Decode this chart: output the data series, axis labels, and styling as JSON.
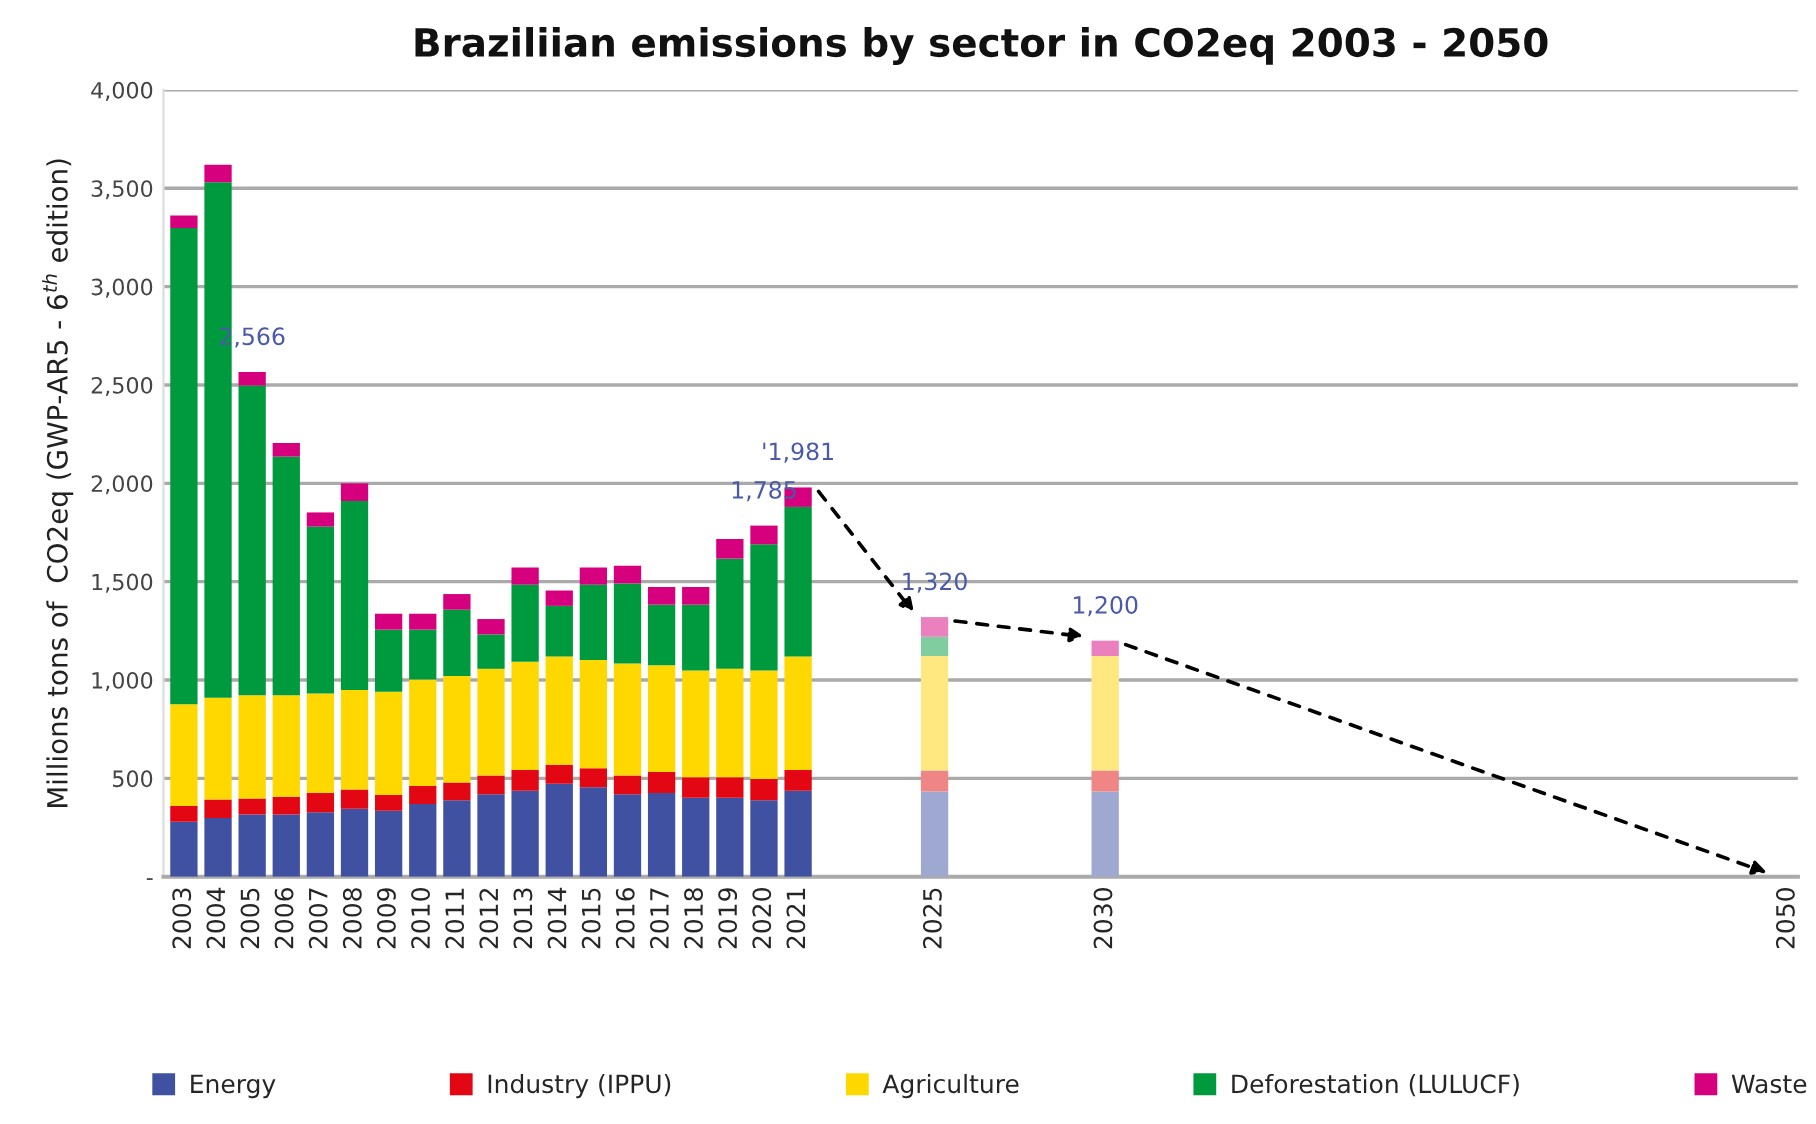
{
  "chart_data": {
    "type": "bar",
    "stacked": true,
    "title": "Braziliian emissions by sector in CO2eq 2003 - 2050",
    "ylabel": "Millions tons of  CO2eq (GWP-AR5 - 6$^{th}$ edition)",
    "x": [
      2003,
      2004,
      2005,
      2006,
      2007,
      2008,
      2009,
      2010,
      2011,
      2012,
      2013,
      2014,
      2015,
      2016,
      2017,
      2018,
      2019,
      2020,
      2021,
      2025,
      2030,
      2050
    ],
    "xlim": [
      2002.4,
      2050.3
    ],
    "xticks": [
      2003,
      2004,
      2005,
      2006,
      2007,
      2008,
      2009,
      2010,
      2011,
      2012,
      2013,
      2014,
      2015,
      2016,
      2017,
      2018,
      2019,
      2020,
      2021,
      2025,
      2030,
      2050
    ],
    "ylim": [
      0,
      4000
    ],
    "yticks": [
      {
        "value": 0,
        "label": "-"
      },
      500,
      {
        "value": 1000,
        "label": "1,000"
      },
      {
        "value": 1500,
        "label": "1,500"
      },
      {
        "value": 2000,
        "label": "2,000"
      },
      {
        "value": 2500,
        "label": "2,500"
      },
      {
        "value": 3000,
        "label": "3,000"
      },
      {
        "value": 3500,
        "label": "3,500"
      },
      {
        "value": 4000,
        "label": "4,000"
      }
    ],
    "grid": "y",
    "legend": "bottom",
    "series": [
      {
        "name": "Energy",
        "color": "#3f51a0",
        "colors": [
          "#3f51a0",
          "#3f51a0",
          "#3f51a0",
          "#3f51a0",
          "#3f51a0",
          "#3f51a0",
          "#3f51a0",
          "#3f51a0",
          "#3f51a0",
          "#3f51a0",
          "#3f51a0",
          "#3f51a0",
          "#3f51a0",
          "#3f51a0",
          "#3f51a0",
          "#3f51a0",
          "#3f51a0",
          "#3f51a0",
          "#3f51a0",
          "#9fa8d0",
          "#9fa8d0",
          "#9fa8d0"
        ],
        "values": [
          280,
          298,
          316,
          316,
          328,
          346,
          336,
          370,
          389,
          419,
          437,
          473,
          455,
          419,
          425,
          401,
          401,
          389,
          437,
          433,
          433,
          0
        ]
      },
      {
        "name": "Industry (IPPU)",
        "color": "#e30613",
        "colors": [
          "#e30613",
          "#e30613",
          "#e30613",
          "#e30613",
          "#e30613",
          "#e30613",
          "#e30613",
          "#e30613",
          "#e30613",
          "#e30613",
          "#e30613",
          "#e30613",
          "#e30613",
          "#e30613",
          "#e30613",
          "#e30613",
          "#e30613",
          "#e30613",
          "#e30613",
          "#f08585",
          "#f08585",
          "#f08585"
        ],
        "values": [
          80,
          94,
          82,
          91,
          97,
          97,
          80,
          91,
          90,
          96,
          105,
          96,
          96,
          96,
          108,
          105,
          105,
          108,
          105,
          107,
          107,
          0
        ]
      },
      {
        "name": "Agriculture",
        "color": "#ffd800",
        "colors": [
          "#ffd800",
          "#ffd800",
          "#ffd800",
          "#ffd800",
          "#ffd800",
          "#ffd800",
          "#ffd800",
          "#ffd800",
          "#ffd800",
          "#ffd800",
          "#ffd800",
          "#ffd800",
          "#ffd800",
          "#ffd800",
          "#ffd800",
          "#ffd800",
          "#ffd800",
          "#ffd800",
          "#ffd800",
          "#ffe880",
          "#ffe880",
          "#ffe880"
        ],
        "values": [
          517,
          518,
          524,
          515,
          506,
          506,
          524,
          542,
          542,
          542,
          551,
          551,
          551,
          569,
          542,
          542,
          551,
          551,
          578,
          582,
          582,
          0
        ]
      },
      {
        "name": "Deforestation (LULUCF)",
        "color": "#009a3e",
        "colors": [
          "#009a3e",
          "#009a3e",
          "#009a3e",
          "#009a3e",
          "#009a3e",
          "#009a3e",
          "#009a3e",
          "#009a3e",
          "#009a3e",
          "#009a3e",
          "#009a3e",
          "#009a3e",
          "#009a3e",
          "#009a3e",
          "#009a3e",
          "#009a3e",
          "#009a3e",
          "#009a3e",
          "#009a3e",
          "#80cd9f",
          "#80cd9f",
          "#80cd9f"
        ],
        "values": [
          2421,
          2620,
          1575,
          1214,
          849,
          961,
          316,
          253,
          337,
          175,
          392,
          257,
          383,
          407,
          308,
          335,
          560,
          642,
          760,
          98,
          0,
          0
        ]
      },
      {
        "name": "Waste",
        "color": "#d6007e",
        "colors": [
          "#d6007e",
          "#d6007e",
          "#d6007e",
          "#d6007e",
          "#d6007e",
          "#d6007e",
          "#d6007e",
          "#d6007e",
          "#d6007e",
          "#d6007e",
          "#d6007e",
          "#d6007e",
          "#d6007e",
          "#d6007e",
          "#d6007e",
          "#d6007e",
          "#d6007e",
          "#d6007e",
          "#d6007e",
          "#eb80bf",
          "#eb80bf",
          "#eb80bf"
        ],
        "values": [
          63,
          90,
          69,
          69,
          72,
          90,
          81,
          81,
          79,
          78,
          87,
          78,
          87,
          90,
          90,
          90,
          100,
          95,
          99,
          100,
          78,
          0
        ]
      }
    ],
    "annotations": [
      {
        "text": "2,566",
        "x": 2005,
        "y": 2566
      },
      {
        "text": "1,785",
        "x": 2020,
        "y": 1785
      },
      {
        "text": "'1,981",
        "x": 2021,
        "y": 1981
      },
      {
        "text": "1,320",
        "x": 2025,
        "y": 1320
      },
      {
        "text": "1,200",
        "x": 2030,
        "y": 1200
      }
    ]
  }
}
